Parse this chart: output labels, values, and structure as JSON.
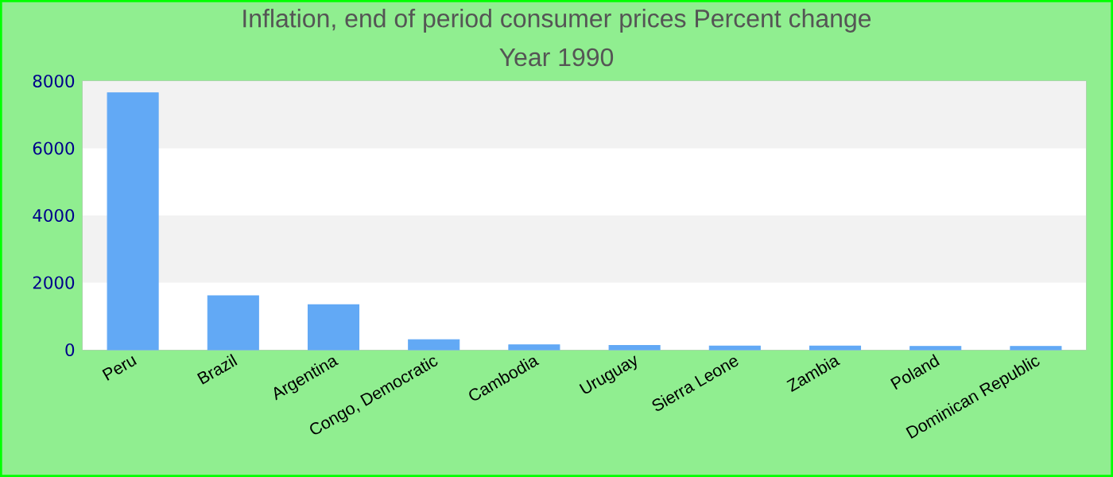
{
  "chart_data": {
    "type": "bar",
    "title": "Inflation, end of period consumer prices  Percent change",
    "subtitle": "Year 1990",
    "categories": [
      "Peru",
      "Brazil",
      "Argentina",
      "Congo, Democratic",
      "Cambodia",
      "Uruguay",
      "Sierra Leone",
      "Zambia",
      "Poland",
      "Dominican Republic"
    ],
    "values": [
      7650,
      1610,
      1340,
      300,
      150,
      130,
      110,
      110,
      100,
      100
    ],
    "color": "#62a9f5",
    "ylim": [
      0,
      8000
    ],
    "yticks": [
      0,
      2000,
      4000,
      6000,
      8000
    ]
  }
}
